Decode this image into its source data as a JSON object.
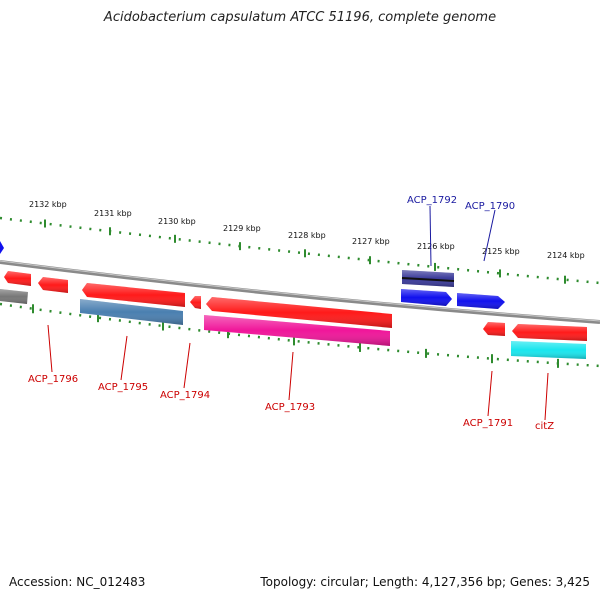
{
  "title": "Acidobacterium capsulatum ATCC 51196, complete genome",
  "footer": {
    "accession": "Accession: NC_012483",
    "summary": "Topology: circular; Length: 4,127,356 bp; Genes: 3,425"
  },
  "ruler_labels": [
    "2132 kbp",
    "2131 kbp",
    "2130 kbp",
    "2129 kbp",
    "2128 kbp",
    "2127 kbp",
    "2126 kbp",
    "2125 kbp",
    "2124 kbp"
  ],
  "colors": {
    "backbone": "#8a8a8a",
    "tick": "#2e8b2e",
    "gene_red": "#ff1a1a",
    "gene_blue": "#1010ee",
    "gene_steel": "#4a7fb0",
    "gene_magenta": "#f0169a",
    "gene_cyan": "#19e6ee",
    "gene_grey": "#777777",
    "gene_navy": "#3a3a9a",
    "label_red": "#cc0000",
    "label_blue": "#1a1aa0"
  },
  "genes": [
    {
      "id": "g0",
      "label": "",
      "color": "gene_blue",
      "strand": "plus"
    },
    {
      "id": "g1",
      "label": "",
      "color": "gene_red",
      "strand": "minus"
    },
    {
      "id": "g2",
      "label": "",
      "color": "gene_grey",
      "strand": "minus"
    },
    {
      "id": "g3",
      "label": "ACP_1796",
      "color": "gene_red",
      "strand": "minus"
    },
    {
      "id": "g4",
      "label": "ACP_1795",
      "color": "gene_red",
      "strand": "minus"
    },
    {
      "id": "g5",
      "label": "",
      "color": "gene_steel",
      "strand": "minus"
    },
    {
      "id": "g6",
      "label": "ACP_1794",
      "color": "gene_red",
      "strand": "minus"
    },
    {
      "id": "g7",
      "label": "ACP_1793",
      "color": "gene_red",
      "strand": "minus"
    },
    {
      "id": "g8",
      "label": "",
      "color": "gene_magenta",
      "strand": "minus"
    },
    {
      "id": "g9",
      "label": "ACP_1792",
      "color": "gene_navy",
      "strand": "plus"
    },
    {
      "id": "g10",
      "label": "",
      "color": "gene_blue",
      "strand": "plus"
    },
    {
      "id": "g11",
      "label": "ACP_1790",
      "color": "gene_blue",
      "strand": "plus"
    },
    {
      "id": "g12",
      "label": "ACP_1791",
      "color": "gene_red",
      "strand": "minus"
    },
    {
      "id": "g13",
      "label": "citZ",
      "color": "gene_red",
      "strand": "minus"
    },
    {
      "id": "g14",
      "label": "",
      "color": "gene_cyan",
      "strand": "minus"
    }
  ]
}
